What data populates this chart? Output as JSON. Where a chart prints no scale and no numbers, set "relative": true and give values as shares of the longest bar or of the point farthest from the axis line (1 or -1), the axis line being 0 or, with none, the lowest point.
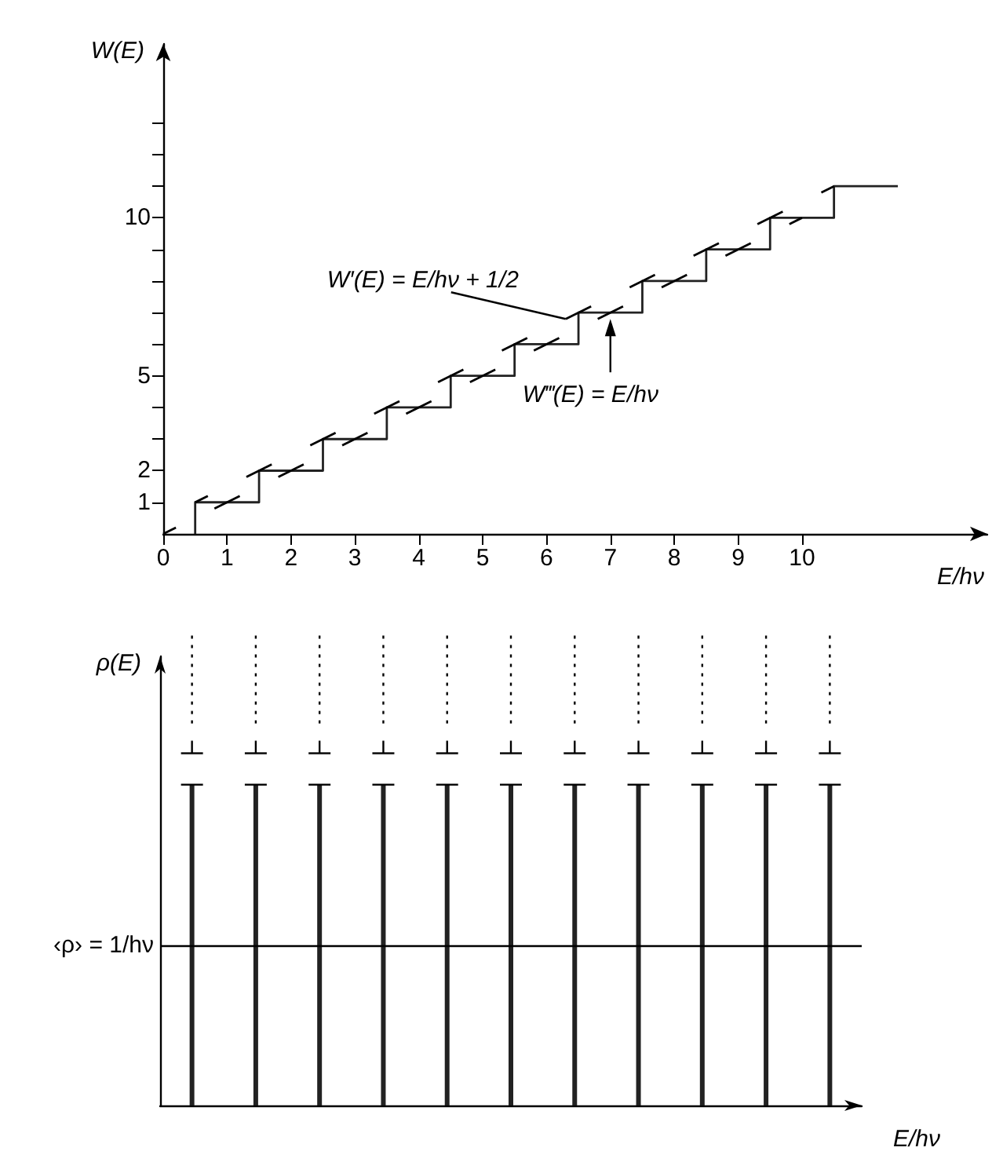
{
  "chart_data": [
    {
      "type": "step",
      "ylabel": "W(E)",
      "xlabel": "E/hν",
      "xlim": [
        0,
        12.9
      ],
      "ylim": [
        0,
        15.5
      ],
      "marker": "none",
      "xticks": [
        0,
        1,
        2,
        3,
        4,
        5,
        6,
        7,
        8,
        9,
        10
      ],
      "yticks": [
        1,
        2,
        {
          "value": 3,
          "label": null
        },
        {
          "value": 4,
          "label": null
        },
        5,
        {
          "value": 6,
          "label": null
        },
        {
          "value": 7,
          "label": null
        },
        {
          "value": 8,
          "label": null
        },
        {
          "value": 9,
          "label": null
        },
        10,
        {
          "value": 11,
          "label": null
        },
        {
          "value": 12,
          "label": null
        },
        {
          "value": 13,
          "label": null
        }
      ],
      "series": [
        {
          "color": "#222222",
          "x": [
            0.5,
            0.5,
            1.5,
            2.5,
            3.5,
            4.5,
            5.5,
            6.5,
            7.5,
            8.5,
            9.5,
            10.5,
            11.5
          ],
          "values": [
            0,
            1,
            2,
            3,
            4,
            5,
            6,
            7,
            8,
            9,
            10,
            11,
            11
          ]
        },
        {
          "type": "line",
          "line_style": "dashed",
          "color": "#000000",
          "x": [
            0.5,
            10.5
          ],
          "values": [
            1,
            11
          ]
        },
        {
          "type": "line",
          "line_style": "dashed",
          "color": "#000000",
          "x": [
            0,
            10
          ],
          "values": [
            0,
            10
          ]
        }
      ],
      "annotations": [
        {
          "text": "W′(E) = E/hν + 1/2",
          "x": 6.3,
          "y": 6.8
        },
        {
          "text": "W‴(E) = E/hν",
          "x": 7,
          "y": 7
        }
      ]
    },
    {
      "type": "bar",
      "relative": true,
      "ylabel": "ρ(E)",
      "xlabel": "E/hν",
      "color": "#222222",
      "categories": [
        null,
        null,
        null,
        null,
        null,
        null,
        null,
        null,
        null,
        null,
        null
      ],
      "values": [
        1,
        1,
        1,
        1,
        1,
        1,
        1,
        1,
        1,
        1,
        1
      ],
      "ref_lines": [
        {
          "axis": "y",
          "value": 0.5,
          "label": "‹ρ› = 1/hν"
        }
      ]
    }
  ]
}
